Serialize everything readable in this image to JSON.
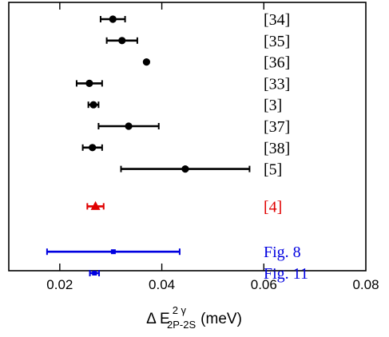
{
  "chart_data": {
    "type": "scatter",
    "title": "",
    "xlabel": {
      "base": "Δ E",
      "superscript": "2 γ",
      "subscript": "2P-2S",
      "unit": "(meV)"
    },
    "ylabel": "",
    "xlim": [
      0.01,
      0.08
    ],
    "xticks": [
      0.02,
      0.04,
      0.06,
      0.08
    ],
    "xtick_labels": [
      "0.02",
      "0.04",
      "0.06",
      "0.08"
    ],
    "grid": false,
    "legend": "none",
    "points": [
      {
        "label": "[34]",
        "value": 0.0304,
        "err_low": 0.0024,
        "err_high": 0.0024,
        "color": "#000000",
        "marker": "circle",
        "group": 0
      },
      {
        "label": "[35]",
        "value": 0.0322,
        "err_low": 0.003,
        "err_high": 0.003,
        "color": "#000000",
        "marker": "circle",
        "group": 0
      },
      {
        "label": "[36]",
        "value": 0.037,
        "err_low": 0.0,
        "err_high": 0.0,
        "color": "#000000",
        "marker": "circle",
        "group": 0
      },
      {
        "label": "[33]",
        "value": 0.0258,
        "err_low": 0.0025,
        "err_high": 0.0025,
        "color": "#000000",
        "marker": "circle",
        "group": 0
      },
      {
        "label": "[3]",
        "value": 0.0266,
        "err_low": 0.001,
        "err_high": 0.001,
        "color": "#000000",
        "marker": "circle",
        "group": 0
      },
      {
        "label": "[37]",
        "value": 0.0335,
        "err_low": 0.0059,
        "err_high": 0.0059,
        "color": "#000000",
        "marker": "circle",
        "group": 0
      },
      {
        "label": "[38]",
        "value": 0.0264,
        "err_low": 0.0019,
        "err_high": 0.0019,
        "color": "#000000",
        "marker": "circle",
        "group": 0
      },
      {
        "label": "[5]",
        "value": 0.0446,
        "err_low": 0.0126,
        "err_high": 0.0126,
        "color": "#000000",
        "marker": "circle",
        "group": 0
      },
      {
        "label": "[4]",
        "value": 0.027,
        "err_low": 0.0016,
        "err_high": 0.0016,
        "color": "#e00000",
        "marker": "triangle",
        "group": 1
      },
      {
        "label": "Fig. 8",
        "value": 0.0305,
        "err_low": 0.013,
        "err_high": 0.013,
        "color": "#0000e0",
        "marker": "square",
        "group": 2
      },
      {
        "label": "Fig. 11",
        "value": 0.0268,
        "err_low": 0.0009,
        "err_high": 0.0009,
        "color": "#0000e0",
        "marker": "square",
        "group": 2
      }
    ]
  }
}
